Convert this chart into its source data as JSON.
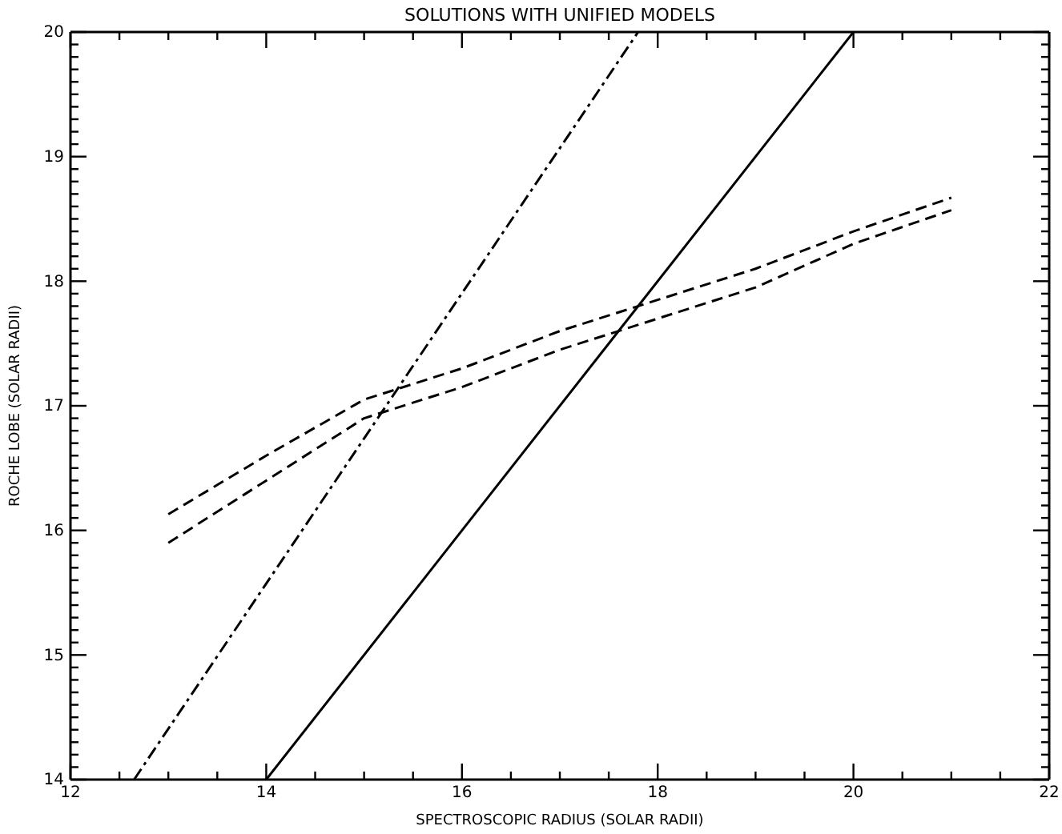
{
  "chart_data": {
    "type": "line",
    "title": "SOLUTIONS WITH UNIFIED MODELS",
    "xlabel": "SPECTROSCOPIC RADIUS (SOLAR RADII)",
    "ylabel": "ROCHE LOBE (SOLAR RADII)",
    "xlim": [
      12,
      22
    ],
    "xticks": [
      12,
      {
        "value": 12.5,
        "label": null
      },
      {
        "value": 13,
        "label": null
      },
      {
        "value": 13.5,
        "label": null
      },
      14,
      {
        "value": 14.5,
        "label": null
      },
      {
        "value": 15,
        "label": null
      },
      {
        "value": 15.5,
        "label": null
      },
      16,
      {
        "value": 16.5,
        "label": null
      },
      {
        "value": 17,
        "label": null
      },
      {
        "value": 17.5,
        "label": null
      },
      18,
      {
        "value": 18.5,
        "label": null
      },
      {
        "value": 19,
        "label": null
      },
      {
        "value": 19.5,
        "label": null
      },
      20,
      {
        "value": 20.5,
        "label": null
      },
      {
        "value": 21,
        "label": null
      },
      {
        "value": 21.5,
        "label": null
      },
      22
    ],
    "ylim": [
      14,
      20
    ],
    "yticks": [
      14,
      {
        "value": 14.1,
        "label": null
      },
      {
        "value": 14.2,
        "label": null
      },
      {
        "value": 14.3,
        "label": null
      },
      {
        "value": 14.4,
        "label": null
      },
      {
        "value": 14.5,
        "label": null
      },
      {
        "value": 14.6,
        "label": null
      },
      {
        "value": 14.7,
        "label": null
      },
      {
        "value": 14.8,
        "label": null
      },
      {
        "value": 14.9,
        "label": null
      },
      15,
      {
        "value": 15.1,
        "label": null
      },
      {
        "value": 15.2,
        "label": null
      },
      {
        "value": 15.3,
        "label": null
      },
      {
        "value": 15.4,
        "label": null
      },
      {
        "value": 15.5,
        "label": null
      },
      {
        "value": 15.6,
        "label": null
      },
      {
        "value": 15.7,
        "label": null
      },
      {
        "value": 15.8,
        "label": null
      },
      {
        "value": 15.9,
        "label": null
      },
      16,
      {
        "value": 16.1,
        "label": null
      },
      {
        "value": 16.2,
        "label": null
      },
      {
        "value": 16.3,
        "label": null
      },
      {
        "value": 16.4,
        "label": null
      },
      {
        "value": 16.5,
        "label": null
      },
      {
        "value": 16.6,
        "label": null
      },
      {
        "value": 16.7,
        "label": null
      },
      {
        "value": 16.8,
        "label": null
      },
      {
        "value": 16.9,
        "label": null
      },
      17,
      {
        "value": 17.1,
        "label": null
      },
      {
        "value": 17.2,
        "label": null
      },
      {
        "value": 17.3,
        "label": null
      },
      {
        "value": 17.4,
        "label": null
      },
      {
        "value": 17.5,
        "label": null
      },
      {
        "value": 17.6,
        "label": null
      },
      {
        "value": 17.7,
        "label": null
      },
      {
        "value": 17.8,
        "label": null
      },
      {
        "value": 17.9,
        "label": null
      },
      18,
      {
        "value": 18.1,
        "label": null
      },
      {
        "value": 18.2,
        "label": null
      },
      {
        "value": 18.3,
        "label": null
      },
      {
        "value": 18.4,
        "label": null
      },
      {
        "value": 18.5,
        "label": null
      },
      {
        "value": 18.6,
        "label": null
      },
      {
        "value": 18.7,
        "label": null
      },
      {
        "value": 18.8,
        "label": null
      },
      {
        "value": 18.9,
        "label": null
      },
      19,
      {
        "value": 19.1,
        "label": null
      },
      {
        "value": 19.2,
        "label": null
      },
      {
        "value": 19.3,
        "label": null
      },
      {
        "value": 19.4,
        "label": null
      },
      {
        "value": 19.5,
        "label": null
      },
      {
        "value": 19.6,
        "label": null
      },
      {
        "value": 19.7,
        "label": null
      },
      {
        "value": 19.8,
        "label": null
      },
      {
        "value": 19.9,
        "label": null
      },
      20
    ],
    "grid": false,
    "marker": "none",
    "series": [
      {
        "color": "#000000",
        "line_style": "solid",
        "x": [
          14,
          20
        ],
        "values": [
          14,
          20
        ]
      },
      {
        "color": "#000000",
        "line_style": "dashdot",
        "x": [
          12.65,
          17.8
        ],
        "values": [
          14,
          20
        ]
      },
      {
        "color": "#000000",
        "line_style": "dashed",
        "x": [
          13,
          14,
          15,
          16,
          17,
          18,
          19,
          20,
          21
        ],
        "values": [
          16.13,
          16.6,
          17.05,
          17.3,
          17.6,
          17.85,
          18.1,
          18.4,
          18.67
        ]
      },
      {
        "color": "#000000",
        "line_style": "dashed",
        "x": [
          13,
          14,
          15,
          16,
          17,
          18,
          19,
          20,
          21
        ],
        "values": [
          15.9,
          16.4,
          16.9,
          17.15,
          17.45,
          17.7,
          17.95,
          18.3,
          18.57
        ]
      }
    ]
  }
}
